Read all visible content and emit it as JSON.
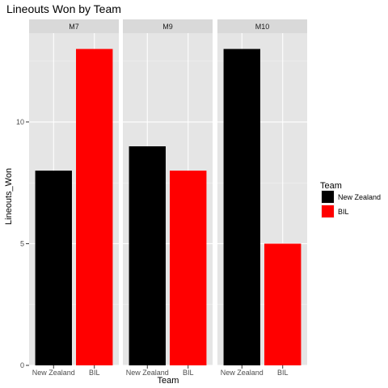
{
  "chart_data": {
    "type": "bar",
    "title": "Lineouts Won  by Team",
    "xlabel": "Team",
    "ylabel": "Lineouts_Won",
    "ylim": [
      0,
      13.65
    ],
    "y_ticks": [
      0,
      5,
      10
    ],
    "categories": [
      "New Zealand",
      "BIL"
    ],
    "facet_order": [
      "M7",
      "M9",
      "M10"
    ],
    "colors": {
      "New Zealand": "#000000",
      "BIL": "#ff0000"
    },
    "panel_background": "#e5e5e5",
    "strip_background": "#d9d9d9",
    "grid": true,
    "legend": {
      "title": "Team",
      "position": "right",
      "entries": [
        {
          "label": "New Zealand",
          "color": "#000000"
        },
        {
          "label": "BIL",
          "color": "#ff0000"
        }
      ]
    },
    "facets": [
      {
        "name": "M7",
        "values": [
          8,
          13
        ]
      },
      {
        "name": "M9",
        "values": [
          9,
          8
        ]
      },
      {
        "name": "M10",
        "values": [
          13,
          5
        ]
      }
    ]
  }
}
